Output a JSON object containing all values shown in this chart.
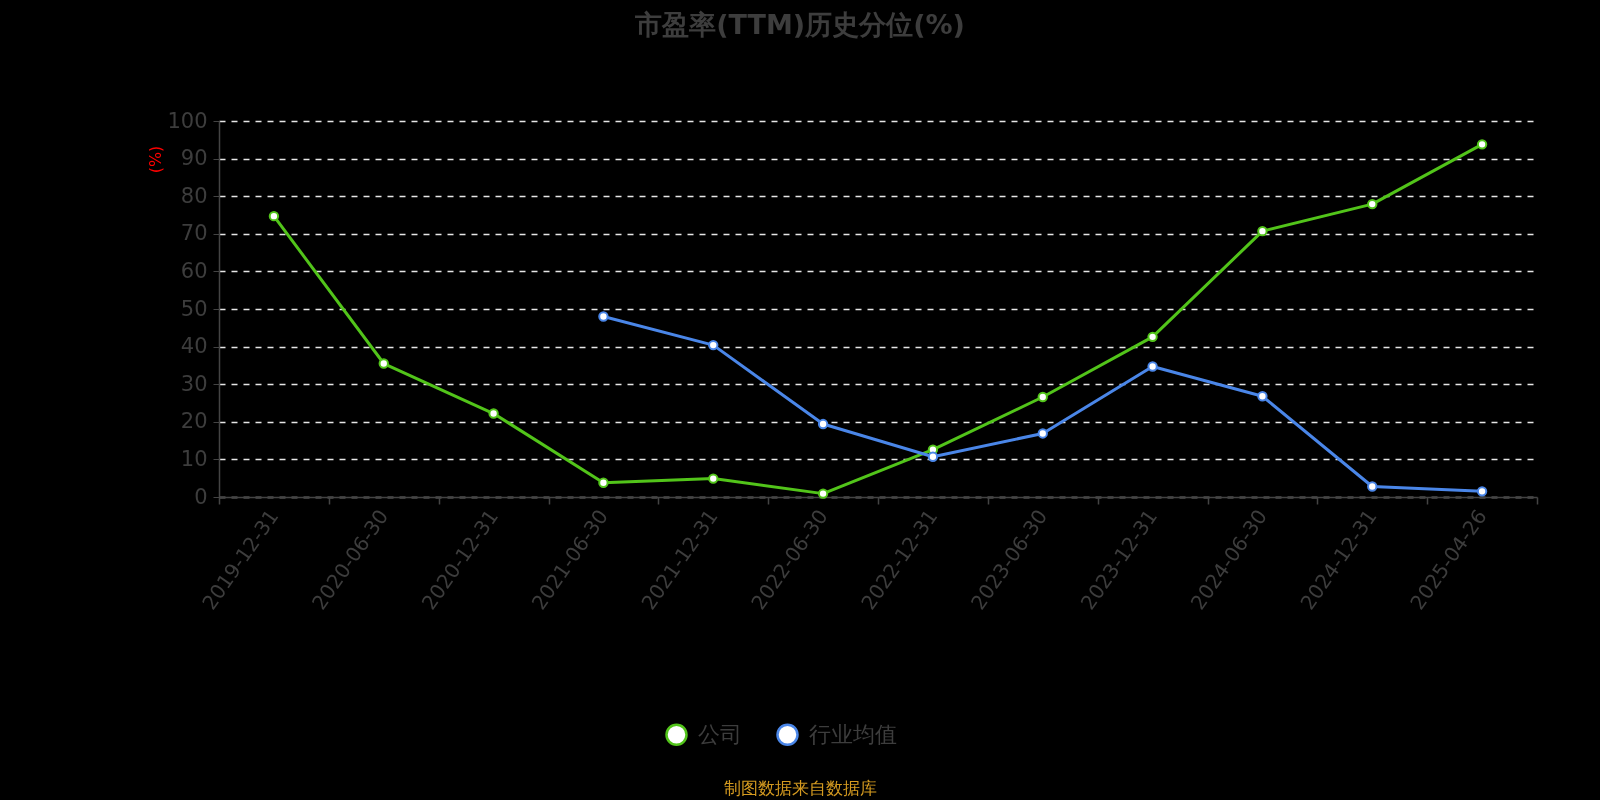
{
  "chart_data": {
    "type": "line",
    "title": "市盈率(TTM)历史分位(%)",
    "ylabel": "(%)",
    "categories": [
      "2019-12-31",
      "2020-06-30",
      "2020-12-31",
      "2021-06-30",
      "2021-12-31",
      "2022-06-30",
      "2022-12-31",
      "2023-06-30",
      "2023-12-31",
      "2024-06-30",
      "2024-12-31",
      "2025-04-26"
    ],
    "series": [
      {
        "name": "公司",
        "color": "#52c41a",
        "values": [
          74.7,
          35.5,
          22.2,
          3.8,
          4.9,
          0.9,
          12.6,
          26.6,
          42.6,
          70.7,
          77.9,
          93.8
        ]
      },
      {
        "name": "行业均值",
        "color": "#4a86e8",
        "values": [
          null,
          null,
          null,
          48.0,
          40.4,
          19.4,
          10.7,
          16.9,
          34.7,
          26.8,
          2.8,
          1.5
        ]
      }
    ],
    "ylim": [
      0,
      100
    ],
    "yticks": [
      0,
      10,
      20,
      30,
      40,
      50,
      60,
      70,
      80,
      90,
      100
    ],
    "grid": "y",
    "legend": "bottom",
    "marker": "circle",
    "line_style": "solid",
    "annotations": [
      "制图数据来自数据库"
    ]
  }
}
